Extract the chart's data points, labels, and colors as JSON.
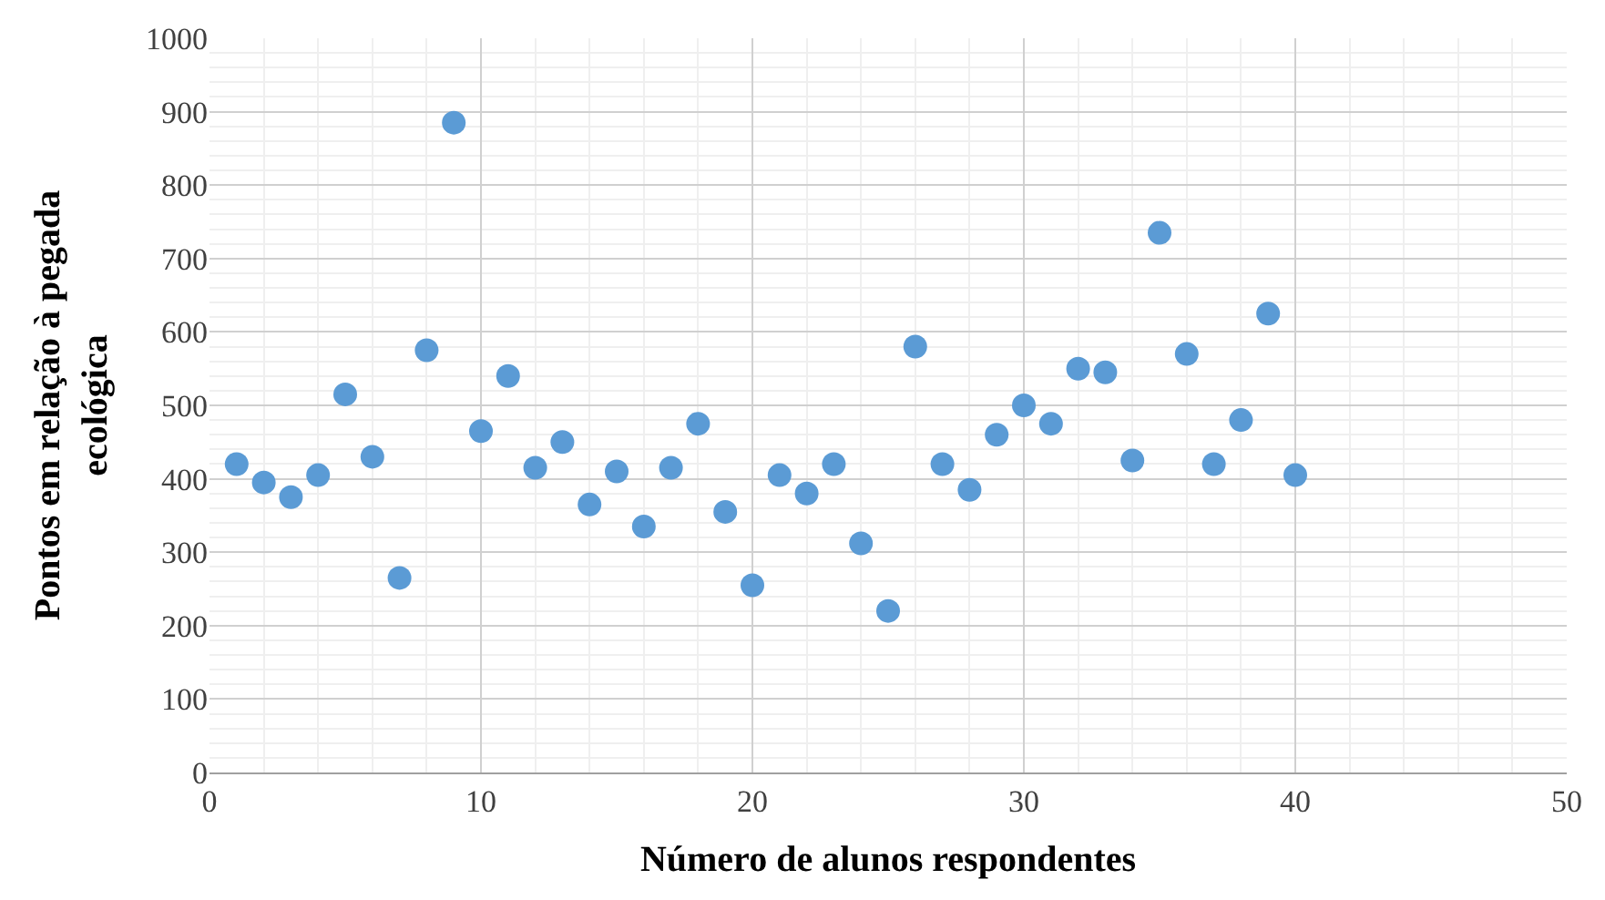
{
  "chart_data": {
    "type": "scatter",
    "xlabel": "Número de alunos respondentes",
    "ylabel": "Pontos em relação à pegada ecológica",
    "x": [
      1,
      2,
      3,
      4,
      5,
      6,
      7,
      8,
      9,
      10,
      11,
      12,
      13,
      14,
      15,
      16,
      17,
      18,
      19,
      20,
      21,
      22,
      23,
      24,
      25,
      26,
      27,
      28,
      29,
      30,
      31,
      32,
      33,
      34,
      35,
      36,
      37,
      38,
      39,
      40
    ],
    "series": [
      {
        "color": "#5b9bd5",
        "values": [
          420,
          395,
          375,
          405,
          515,
          430,
          265,
          575,
          885,
          465,
          540,
          415,
          450,
          365,
          410,
          335,
          415,
          475,
          355,
          255,
          405,
          380,
          420,
          312,
          220,
          580,
          420,
          385,
          460,
          500,
          475,
          550,
          545,
          425,
          735,
          570,
          420,
          480,
          625,
          405
        ]
      }
    ],
    "xlim": [
      0,
      50
    ],
    "xticks": [
      0,
      10,
      20,
      30,
      40,
      50
    ],
    "ylim": [
      0,
      1000
    ],
    "yticks": [
      0,
      100,
      200,
      300,
      400,
      500,
      600,
      700,
      800,
      900,
      1000
    ],
    "grid": true,
    "legend": false,
    "marker": "circle"
  }
}
